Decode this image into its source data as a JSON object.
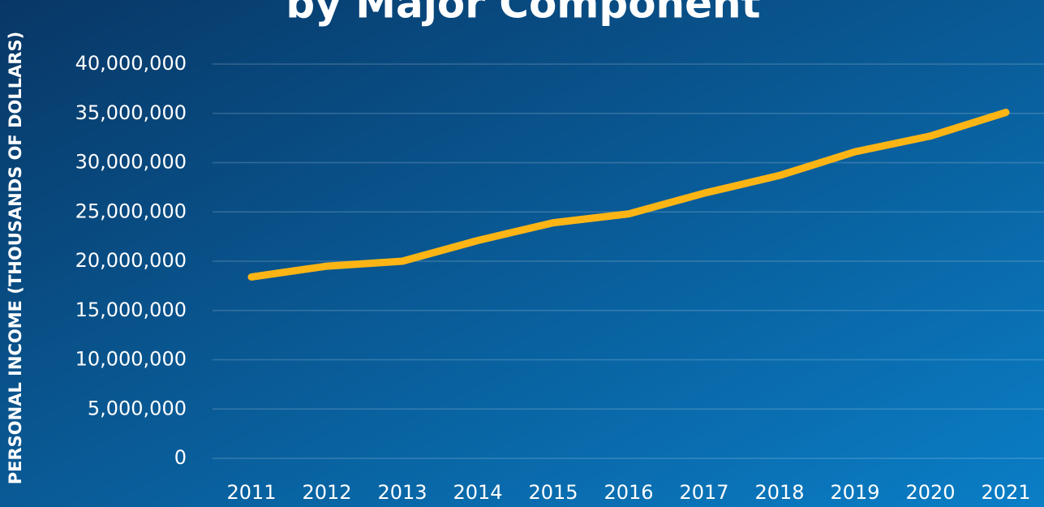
{
  "chart_data": {
    "type": "line",
    "title": "by Major Component",
    "y_label": "PERSONAL INCOME (THOUSANDS OF DOLLARS)",
    "categories": [
      "2011",
      "2012",
      "2013",
      "2014",
      "2015",
      "2016",
      "2017",
      "2018",
      "2019",
      "2020",
      "2021"
    ],
    "series": [
      {
        "name": "Personal Income",
        "color": "#fdb515",
        "values": [
          18400000,
          19500000,
          20000000,
          22100000,
          23900000,
          24800000,
          26900000,
          28700000,
          31100000,
          32700000,
          35100000
        ]
      }
    ],
    "ylim": [
      0,
      40000000
    ],
    "yticks": [
      0,
      {
        "value": 5000000,
        "label": "5,000,000"
      },
      {
        "value": 10000000,
        "label": "10,000,000"
      },
      {
        "value": 15000000,
        "label": "15,000,000"
      },
      {
        "value": 20000000,
        "label": "20,000,000"
      },
      {
        "value": 25000000,
        "label": "25,000,000"
      },
      {
        "value": 30000000,
        "label": "30,000,000"
      },
      {
        "value": 35000000,
        "label": "35,000,000"
      },
      {
        "value": 40000000,
        "label": "40,000,000"
      }
    ],
    "grid": true
  }
}
